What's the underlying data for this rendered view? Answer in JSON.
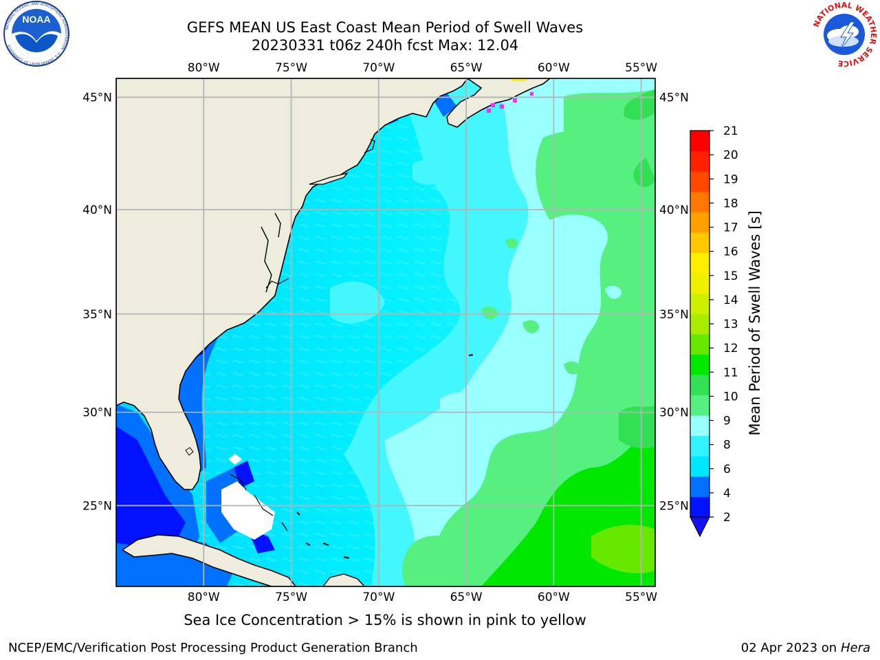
{
  "header": {
    "title_line1": "GEFS MEAN US East Coast Mean Period of Swell Waves",
    "title_line2": "20230331 t06z 240h fcst   Max: 12.04"
  },
  "logos": {
    "noaa": {
      "text": "NOAA",
      "ring_text": "NATIONAL OCEANIC AND ATMOSPHERIC ADMINISTRATION · U.S. DEPARTMENT OF COMMERCE"
    },
    "nws": {
      "ring_text": "NATIONAL WEATHER SERVICE"
    }
  },
  "map": {
    "lon_labels": [
      "80°W",
      "75°W",
      "70°W",
      "65°W",
      "60°W",
      "55°W"
    ],
    "lat_labels": [
      "45°N",
      "40°N",
      "35°N",
      "30°N",
      "25°N"
    ],
    "lon_values": [
      -80,
      -75,
      -70,
      -65,
      -60,
      -55
    ],
    "lat_values": [
      45,
      40,
      35,
      30,
      25
    ],
    "extent": {
      "lon": [
        -85,
        -54.2
      ],
      "lat": [
        20.5,
        45.8
      ]
    },
    "colors": {
      "land": "#eeecdc",
      "grid": "#b4b4b4",
      "coast": "#000000",
      "ice": "#ff28ff",
      "no_data": "#ffffff"
    }
  },
  "colorbar": {
    "label": "Mean Period of Swell Waves [s]",
    "ticks": [
      "2",
      "4",
      "6",
      "8",
      "9",
      "10",
      "11",
      "12",
      "13",
      "14",
      "15",
      "16",
      "17",
      "18",
      "19",
      "20",
      "21"
    ],
    "colors": [
      "#0012ff",
      "#0070ff",
      "#00e6ff",
      "#33f2ff",
      "#99ffff",
      "#55f080",
      "#33e055",
      "#00e800",
      "#66e800",
      "#aaec00",
      "#ccf000",
      "#eef000",
      "#ffee00",
      "#ffc800",
      "#ffa000",
      "#ff7800",
      "#ff4800",
      "#ff2000",
      "#ff0000"
    ],
    "under_color": "#1010ff"
  },
  "footer": {
    "subtitle": "Sea Ice Concentration > 15% is shown in pink to yellow",
    "credit": "NCEP/EMC/Verification Post Processing Product Generation Branch",
    "date": "02 Apr 2023 on",
    "host": "Hera"
  }
}
